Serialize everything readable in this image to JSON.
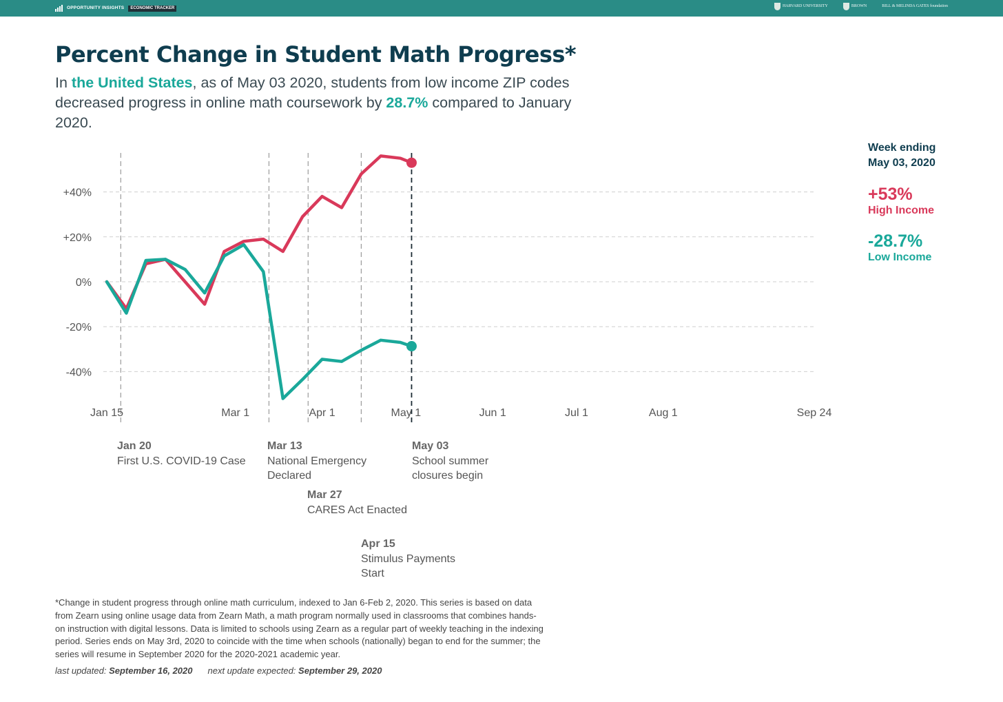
{
  "header": {
    "brand_name": "OPPORTUNITY INSIGHTS",
    "brand_tag": "ECONOMIC TRACKER",
    "partners": [
      "HARVARD UNIVERSITY",
      "BROWN",
      "BILL & MELINDA GATES foundation"
    ]
  },
  "title": "Percent Change in Student Math Progress*",
  "subtitle": {
    "prefix": "In ",
    "location": "the United States",
    "middle": ", as of May 03 2020, students from low income ZIP codes decreased progress in online math coursework by ",
    "value": "28.7%",
    "suffix": " compared to January 2020."
  },
  "legend": {
    "week_line1": "Week ending",
    "week_line2": "May 03, 2020",
    "high_value": "+53%",
    "high_label": "High Income",
    "low_value": "-28.7%",
    "low_label": "Low Income"
  },
  "events": [
    {
      "date": "Jan 20",
      "line1": "First U.S. COVID-19 Case",
      "line2": ""
    },
    {
      "date": "Mar 13",
      "line1": "National Emergency",
      "line2": "Declared"
    },
    {
      "date": "Mar 27",
      "line1": "CARES Act Enacted",
      "line2": ""
    },
    {
      "date": "Apr 15",
      "line1": "Stimulus Payments",
      "line2": "Start"
    },
    {
      "date": "May 03",
      "line1": "School summer",
      "line2": "closures begin"
    }
  ],
  "footnote": "*Change in student progress through online math curriculum, indexed to Jan 6-Feb 2, 2020. This series is based on data from Zearn using online usage data from Zearn Math, a math program normally used in classrooms that combines hands-on instruction with digital lessons. Data is limited to schools using Zearn as a regular part of weekly teaching in the indexing period. Series ends on May 3rd, 2020 to coincide with the time when schools (nationally) began to end for the summer; the series will resume in September 2020 for the 2020-2021 academic year.",
  "updated": {
    "last_label": "last updated:",
    "last_date": "September 16, 2020",
    "next_label": "next update expected:",
    "next_date": "September 29, 2020"
  },
  "colors": {
    "high": "#d9395a",
    "low": "#1aa89a",
    "brand": "#2a8c86",
    "title": "#0f3d4f"
  },
  "chart_data": {
    "type": "line",
    "x_axis": {
      "ticks": [
        {
          "date": "2020-01-15",
          "label": "Jan 15"
        },
        {
          "date": "2020-03-01",
          "label": "Mar 1"
        },
        {
          "date": "2020-04-01",
          "label": "Apr 1"
        },
        {
          "date": "2020-05-01",
          "label": "May 1"
        },
        {
          "date": "2020-06-01",
          "label": "Jun 1"
        },
        {
          "date": "2020-07-01",
          "label": "Jul 1"
        },
        {
          "date": "2020-08-01",
          "label": "Aug 1"
        },
        {
          "date": "2020-09-24",
          "label": "Sep 24"
        }
      ],
      "range": [
        "2020-01-15",
        "2020-09-24"
      ]
    },
    "y_axis": {
      "ticks": [
        {
          "value": 40,
          "label": "+40%"
        },
        {
          "value": 20,
          "label": "+20%"
        },
        {
          "value": 0,
          "label": "0%"
        },
        {
          "value": -20,
          "label": "-20%"
        },
        {
          "value": -40,
          "label": "-40%"
        }
      ],
      "range": [
        -52,
        62
      ]
    },
    "grid": "horizontal dashed",
    "event_lines": [
      "2020-01-20",
      "2020-03-13",
      "2020-03-27",
      "2020-04-15",
      "2020-05-03"
    ],
    "series": [
      {
        "name": "High Income",
        "color": "#d9395a",
        "points": [
          [
            "2020-01-15",
            0
          ],
          [
            "2020-01-22",
            -12
          ],
          [
            "2020-01-29",
            8
          ],
          [
            "2020-02-05",
            10
          ],
          [
            "2020-02-12",
            0
          ],
          [
            "2020-02-19",
            -10
          ],
          [
            "2020-02-26",
            13.5
          ],
          [
            "2020-03-04",
            18
          ],
          [
            "2020-03-11",
            19
          ],
          [
            "2020-03-18",
            13.5
          ],
          [
            "2020-03-25",
            29
          ],
          [
            "2020-04-01",
            38
          ],
          [
            "2020-04-08",
            33
          ],
          [
            "2020-04-15",
            48
          ],
          [
            "2020-04-22",
            56
          ],
          [
            "2020-04-29",
            55
          ],
          [
            "2020-05-03",
            53
          ]
        ]
      },
      {
        "name": "Low Income",
        "color": "#1aa89a",
        "points": [
          [
            "2020-01-15",
            0
          ],
          [
            "2020-01-22",
            -14
          ],
          [
            "2020-01-29",
            9.5
          ],
          [
            "2020-02-05",
            10
          ],
          [
            "2020-02-12",
            5.5
          ],
          [
            "2020-02-19",
            -5
          ],
          [
            "2020-02-26",
            11.5
          ],
          [
            "2020-03-04",
            16.5
          ],
          [
            "2020-03-11",
            4.5
          ],
          [
            "2020-03-18",
            -52
          ],
          [
            "2020-03-25",
            -43.5
          ],
          [
            "2020-04-01",
            -34.5
          ],
          [
            "2020-04-08",
            -35.5
          ],
          [
            "2020-04-15",
            -30.5
          ],
          [
            "2020-04-22",
            -26
          ],
          [
            "2020-04-29",
            -27
          ],
          [
            "2020-05-03",
            -28.7
          ]
        ]
      }
    ]
  }
}
